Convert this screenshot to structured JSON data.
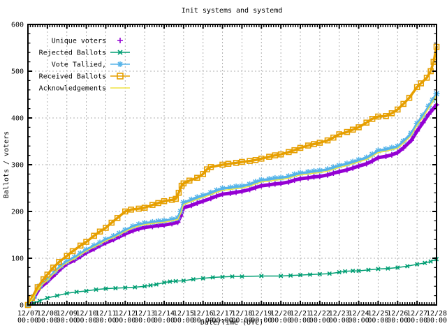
{
  "chart_data": {
    "type": "line",
    "title": "Init systems and systemd",
    "xlabel": "Date/Time (UTC)",
    "ylabel": "Ballots / voters",
    "ylim": [
      0,
      600
    ],
    "y_ticks": [
      0,
      100,
      200,
      300,
      400,
      500,
      600
    ],
    "x_range_days": [
      7,
      28
    ],
    "x_tick_dates": [
      "12/07",
      "12/08",
      "12/09",
      "12/10",
      "12/11",
      "12/12",
      "12/13",
      "12/14",
      "12/15",
      "12/16",
      "12/17",
      "12/18",
      "12/19",
      "12/20",
      "12/21",
      "12/22",
      "12/23",
      "12/24",
      "12/25",
      "12/26",
      "12/27",
      "12/28"
    ],
    "x_tick_time": "00:00",
    "grid": true,
    "legend_position": "top-left",
    "background_color": "#ffffff",
    "grid_color": "#b0b0b0",
    "axis_color": "#000000",
    "series": [
      {
        "id": "unique-voters",
        "name": "Unique voters",
        "color": "#9400d3",
        "marker": "plus",
        "style": "points",
        "draw_line": true,
        "legend_line": false,
        "line_width": 5,
        "marker_size": 4,
        "x": [
          7,
          7.3,
          7.6,
          8,
          8.4,
          8.7,
          9,
          9.4,
          9.7,
          10,
          10.4,
          10.7,
          11,
          11.4,
          11.7,
          12,
          12.4,
          12.7,
          13,
          13.4,
          13.7,
          14,
          14.4,
          14.7,
          14.85,
          15,
          15.4,
          15.7,
          16,
          16.4,
          16.7,
          17,
          17.4,
          17.7,
          18,
          18.4,
          18.7,
          19,
          19.4,
          19.7,
          20,
          20.4,
          20.7,
          21,
          21.4,
          21.7,
          22,
          22.4,
          22.7,
          23,
          23.4,
          23.7,
          24,
          24.4,
          24.7,
          25,
          25.4,
          25.7,
          26,
          26.3,
          26.7,
          27,
          27.3,
          27.6,
          27.8,
          28
        ],
        "values": [
          0,
          15,
          36,
          50,
          66,
          78,
          88,
          96,
          104,
          112,
          120,
          127,
          133,
          140,
          146,
          152,
          159,
          163,
          166,
          168,
          170,
          171,
          174,
          177,
          190,
          208,
          213,
          218,
          222,
          228,
          233,
          237,
          239,
          241,
          243,
          247,
          251,
          255,
          257,
          259,
          260,
          263,
          267,
          270,
          272,
          274,
          275,
          278,
          282,
          285,
          289,
          293,
          297,
          302,
          308,
          315,
          318,
          321,
          326,
          336,
          352,
          372,
          390,
          408,
          418,
          428
        ]
      },
      {
        "id": "rejected-ballots",
        "name": "Rejected Ballots",
        "color": "#009e73",
        "marker": "cross",
        "style": "linespoints",
        "draw_line": true,
        "legend_line": true,
        "line_width": 1.5,
        "marker_size": 3.5,
        "x": [
          7,
          7.3,
          7.6,
          8,
          8.5,
          9,
          9.5,
          10,
          10.5,
          11,
          11.5,
          12,
          12.5,
          13,
          13.3,
          13.6,
          14,
          14.3,
          14.6,
          15,
          15.5,
          16,
          16.5,
          17,
          17.5,
          18,
          19,
          20,
          20.5,
          21,
          21.5,
          22,
          22.5,
          23,
          23.3,
          23.7,
          24,
          24.5,
          25,
          25.5,
          26,
          26.5,
          27,
          27.4,
          27.7,
          28
        ],
        "values": [
          0,
          4,
          9,
          15,
          20,
          25,
          28,
          30,
          33,
          35,
          36,
          37,
          38,
          40,
          42,
          44,
          48,
          50,
          51,
          52,
          55,
          57,
          59,
          60,
          61,
          61,
          62,
          62,
          63,
          64,
          65,
          66,
          67,
          70,
          72,
          73,
          73,
          75,
          77,
          78,
          80,
          83,
          87,
          90,
          93,
          98
        ]
      },
      {
        "id": "vote-tallied",
        "name": "Vote Tallied,",
        "color": "#56b4e9",
        "marker": "asterisk",
        "style": "linespoints",
        "draw_line": true,
        "legend_line": true,
        "line_width": 3.5,
        "marker_size": 4.5,
        "x": [
          7,
          7.3,
          7.6,
          8,
          8.4,
          8.7,
          9,
          9.4,
          9.7,
          10,
          10.4,
          10.7,
          11,
          11.4,
          11.7,
          12,
          12.4,
          12.7,
          13,
          13.4,
          13.7,
          14,
          14.4,
          14.7,
          14.85,
          15,
          15.4,
          15.7,
          16,
          16.4,
          16.7,
          17,
          17.4,
          17.7,
          18,
          18.4,
          18.7,
          19,
          19.4,
          19.7,
          20,
          20.4,
          20.7,
          21,
          21.4,
          21.7,
          22,
          22.4,
          22.7,
          23,
          23.4,
          23.7,
          24,
          24.4,
          24.7,
          25,
          25.4,
          25.7,
          26,
          26.3,
          26.7,
          27,
          27.3,
          27.6,
          27.8,
          28
        ],
        "values": [
          0,
          18,
          40,
          55,
          72,
          84,
          93,
          102,
          110,
          118,
          127,
          133,
          140,
          147,
          153,
          160,
          168,
          172,
          175,
          177,
          179,
          180,
          183,
          186,
          200,
          219,
          225,
          230,
          234,
          240,
          245,
          249,
          251,
          253,
          254,
          258,
          263,
          267,
          269,
          271,
          272,
          275,
          279,
          282,
          284,
          286,
          287,
          290,
          294,
          298,
          302,
          306,
          310,
          315,
          322,
          330,
          333,
          336,
          339,
          350,
          367,
          388,
          405,
          425,
          438,
          452
        ]
      },
      {
        "id": "received-ballots",
        "name": "Received Ballots",
        "color": "#e69f00",
        "marker": "square",
        "style": "linespoints",
        "draw_line": true,
        "legend_line": true,
        "line_width": 3.5,
        "marker_size": 3.5,
        "x": [
          7,
          7.2,
          7.5,
          7.8,
          8,
          8.3,
          8.6,
          9,
          9.3,
          9.7,
          10,
          10.4,
          10.7,
          11,
          11.3,
          11.6,
          12,
          12.3,
          12.7,
          13,
          13.4,
          13.7,
          14,
          14.4,
          14.6,
          14.75,
          14.9,
          15,
          15.3,
          15.7,
          16,
          16.2,
          16.4,
          17,
          17.3,
          17.7,
          18,
          18.4,
          18.7,
          19,
          19.4,
          19.7,
          20,
          20.4,
          20.7,
          21,
          21.4,
          21.7,
          22,
          22.4,
          22.7,
          23,
          23.4,
          23.7,
          24,
          24.4,
          24.7,
          25,
          25.4,
          25.7,
          26,
          26.3,
          26.6,
          27,
          27.2,
          27.5,
          27.7,
          27.85,
          28
        ],
        "values": [
          0,
          15,
          38,
          55,
          65,
          80,
          92,
          105,
          115,
          127,
          135,
          148,
          157,
          165,
          176,
          186,
          200,
          204,
          206,
          208,
          214,
          218,
          222,
          225,
          227,
          240,
          255,
          260,
          266,
          272,
          280,
          290,
          295,
          300,
          302,
          304,
          306,
          308,
          310,
          313,
          317,
          320,
          322,
          327,
          331,
          336,
          341,
          344,
          347,
          352,
          358,
          365,
          370,
          375,
          380,
          390,
          398,
          403,
          404,
          410,
          418,
          430,
          443,
          466,
          474,
          486,
          500,
          520,
          552
        ]
      },
      {
        "id": "acknowledgements",
        "name": "Acknowledgements",
        "color": "#f0e442",
        "marker": "none",
        "style": "line",
        "draw_line": true,
        "legend_line": true,
        "line_width": 1.5,
        "marker_size": 0,
        "x": [
          7,
          7.3,
          7.6,
          8,
          8.4,
          8.7,
          9,
          9.4,
          9.7,
          10,
          10.4,
          10.7,
          11,
          11.4,
          11.7,
          12,
          12.4,
          12.7,
          13,
          13.4,
          13.7,
          14,
          14.4,
          14.7,
          14.85,
          15,
          15.4,
          15.7,
          16,
          16.4,
          16.7,
          17,
          17.4,
          17.7,
          18,
          18.4,
          18.7,
          19,
          19.4,
          19.7,
          20,
          20.4,
          20.7,
          21,
          21.4,
          21.7,
          22,
          22.4,
          22.7,
          23,
          23.4,
          23.7,
          24,
          24.4,
          24.7,
          25,
          25.4,
          25.7,
          26,
          26.3,
          26.7,
          27,
          27.3,
          27.6,
          27.8,
          28
        ],
        "values": [
          0,
          17,
          38,
          53,
          70,
          81,
          90,
          99,
          107,
          115,
          124,
          130,
          137,
          144,
          150,
          157,
          165,
          169,
          172,
          174,
          176,
          177,
          180,
          183,
          196,
          215,
          221,
          226,
          230,
          236,
          241,
          245,
          247,
          249,
          250,
          254,
          259,
          263,
          265,
          267,
          268,
          271,
          275,
          278,
          280,
          282,
          283,
          286,
          290,
          294,
          298,
          302,
          306,
          311,
          318,
          326,
          329,
          332,
          335,
          346,
          362,
          384,
          401,
          421,
          434,
          448
        ]
      }
    ]
  }
}
